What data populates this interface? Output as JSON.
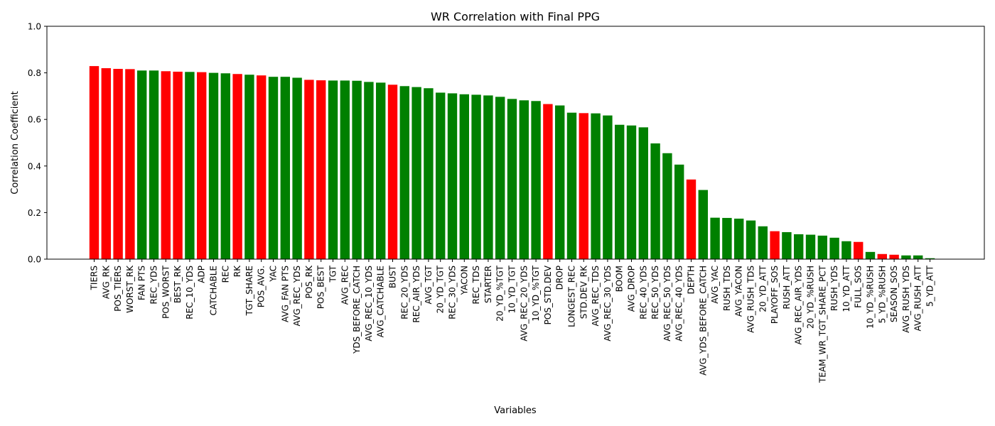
{
  "chart_data": {
    "type": "bar",
    "title": "WR Correlation with Final PPG",
    "xlabel": "Variables",
    "ylabel": "Correlation Coefficient",
    "ylim": [
      0,
      1.0
    ],
    "yticks": [
      "0.0",
      "0.2",
      "0.4",
      "0.6",
      "0.8",
      "1.0"
    ],
    "grid": false,
    "colors": {
      "positive_group": "#008000",
      "negative_group": "#ff0000"
    },
    "bars": [
      {
        "label": "TIERS",
        "value": 0.829,
        "color": "#ff0000"
      },
      {
        "label": "AVG_RK",
        "value": 0.82,
        "color": "#ff0000"
      },
      {
        "label": "POS_TIERS",
        "value": 0.817,
        "color": "#ff0000"
      },
      {
        "label": "WORST_RK",
        "value": 0.816,
        "color": "#ff0000"
      },
      {
        "label": "FAN PTS",
        "value": 0.81,
        "color": "#008000"
      },
      {
        "label": "REC_YDS",
        "value": 0.81,
        "color": "#008000"
      },
      {
        "label": "POS_WORST",
        "value": 0.807,
        "color": "#ff0000"
      },
      {
        "label": "BEST_RK",
        "value": 0.805,
        "color": "#ff0000"
      },
      {
        "label": "REC_10_YDS",
        "value": 0.804,
        "color": "#008000"
      },
      {
        "label": "ADP",
        "value": 0.803,
        "color": "#ff0000"
      },
      {
        "label": "CATCHABLE",
        "value": 0.8,
        "color": "#008000"
      },
      {
        "label": "REC",
        "value": 0.798,
        "color": "#008000"
      },
      {
        "label": "RK",
        "value": 0.795,
        "color": "#ff0000"
      },
      {
        "label": "TGT_SHARE",
        "value": 0.792,
        "color": "#008000"
      },
      {
        "label": "POS_AVG.",
        "value": 0.789,
        "color": "#ff0000"
      },
      {
        "label": "YAC",
        "value": 0.783,
        "color": "#008000"
      },
      {
        "label": "AVG_FAN PTS",
        "value": 0.783,
        "color": "#008000"
      },
      {
        "label": "AVG_REC_YDS",
        "value": 0.779,
        "color": "#008000"
      },
      {
        "label": "POS_RK",
        "value": 0.77,
        "color": "#ff0000"
      },
      {
        "label": "POS_BEST",
        "value": 0.768,
        "color": "#ff0000"
      },
      {
        "label": "TGT",
        "value": 0.767,
        "color": "#008000"
      },
      {
        "label": "AVG_REC",
        "value": 0.767,
        "color": "#008000"
      },
      {
        "label": "YDS_BEFORE_CATCH",
        "value": 0.766,
        "color": "#008000"
      },
      {
        "label": "AVG_REC_10_YDS",
        "value": 0.761,
        "color": "#008000"
      },
      {
        "label": "AVG_CATCHABLE",
        "value": 0.758,
        "color": "#008000"
      },
      {
        "label": "BUST",
        "value": 0.749,
        "color": "#ff0000"
      },
      {
        "label": "REC_20_YDS",
        "value": 0.743,
        "color": "#008000"
      },
      {
        "label": "REC_AIR_YDS",
        "value": 0.739,
        "color": "#008000"
      },
      {
        "label": "AVG_TGT",
        "value": 0.734,
        "color": "#008000"
      },
      {
        "label": "20_YD_TGT",
        "value": 0.715,
        "color": "#008000"
      },
      {
        "label": "REC_30_YDS",
        "value": 0.712,
        "color": "#008000"
      },
      {
        "label": "YACON",
        "value": 0.708,
        "color": "#008000"
      },
      {
        "label": "REC_TDS",
        "value": 0.706,
        "color": "#008000"
      },
      {
        "label": "STARTER",
        "value": 0.703,
        "color": "#008000"
      },
      {
        "label": "20_YD_%TGT",
        "value": 0.697,
        "color": "#008000"
      },
      {
        "label": "10_YD_TGT",
        "value": 0.688,
        "color": "#008000"
      },
      {
        "label": "AVG_REC_20_YDS",
        "value": 0.682,
        "color": "#008000"
      },
      {
        "label": "10_YD_%TGT",
        "value": 0.679,
        "color": "#008000"
      },
      {
        "label": "POS_STD.DEV",
        "value": 0.666,
        "color": "#ff0000"
      },
      {
        "label": "DROP",
        "value": 0.66,
        "color": "#008000"
      },
      {
        "label": "LONGEST_REC",
        "value": 0.629,
        "color": "#008000"
      },
      {
        "label": "STD.DEV_RK",
        "value": 0.627,
        "color": "#ff0000"
      },
      {
        "label": "AVG_REC_TDS",
        "value": 0.626,
        "color": "#008000"
      },
      {
        "label": "AVG_REC_30_YDS",
        "value": 0.617,
        "color": "#008000"
      },
      {
        "label": "BOOM",
        "value": 0.577,
        "color": "#008000"
      },
      {
        "label": "AVG_DROP",
        "value": 0.574,
        "color": "#008000"
      },
      {
        "label": "REC_40_YDS",
        "value": 0.566,
        "color": "#008000"
      },
      {
        "label": "REC_50_YDS",
        "value": 0.497,
        "color": "#008000"
      },
      {
        "label": "AVG_REC_50_YDS",
        "value": 0.455,
        "color": "#008000"
      },
      {
        "label": "AVG_REC_40_YDS",
        "value": 0.406,
        "color": "#008000"
      },
      {
        "label": "DEPTH",
        "value": 0.342,
        "color": "#ff0000"
      },
      {
        "label": "AVG_YDS_BEFORE_CATCH",
        "value": 0.297,
        "color": "#008000"
      },
      {
        "label": "AVG_YAC",
        "value": 0.178,
        "color": "#008000"
      },
      {
        "label": "RUSH_TDS",
        "value": 0.177,
        "color": "#008000"
      },
      {
        "label": "AVG_YACON",
        "value": 0.174,
        "color": "#008000"
      },
      {
        "label": "AVG_RUSH_TDS",
        "value": 0.166,
        "color": "#008000"
      },
      {
        "label": "20_YD_ATT",
        "value": 0.141,
        "color": "#008000"
      },
      {
        "label": "PLAYOFF_SOS",
        "value": 0.12,
        "color": "#ff0000"
      },
      {
        "label": "RUSH_ATT",
        "value": 0.116,
        "color": "#008000"
      },
      {
        "label": "AVG_REC_AIR_YDS",
        "value": 0.107,
        "color": "#008000"
      },
      {
        "label": "20_YD_%RUSH",
        "value": 0.105,
        "color": "#008000"
      },
      {
        "label": "TEAM_WR_TGT_SHARE_PCT",
        "value": 0.101,
        "color": "#008000"
      },
      {
        "label": "RUSH_YDS",
        "value": 0.092,
        "color": "#008000"
      },
      {
        "label": "10_YD_ATT",
        "value": 0.077,
        "color": "#008000"
      },
      {
        "label": "FULL_SOS",
        "value": 0.074,
        "color": "#ff0000"
      },
      {
        "label": "10_YD_%RUSH",
        "value": 0.031,
        "color": "#008000"
      },
      {
        "label": "5_YD_%RUSH",
        "value": 0.022,
        "color": "#ff0000"
      },
      {
        "label": "SEASON_SOS",
        "value": 0.019,
        "color": "#ff0000"
      },
      {
        "label": "AVG_RUSH_YDS",
        "value": 0.016,
        "color": "#008000"
      },
      {
        "label": "AVG_RUSH_ATT",
        "value": 0.016,
        "color": "#008000"
      },
      {
        "label": "5_YD_ATT",
        "value": 0.004,
        "color": "#008000"
      }
    ]
  }
}
